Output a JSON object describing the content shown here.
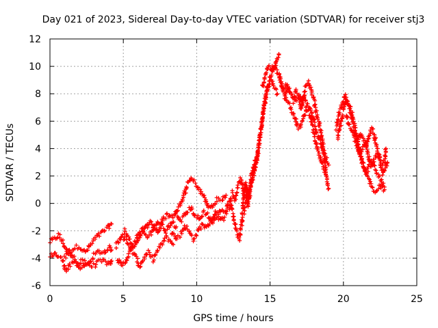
{
  "chart_data": {
    "type": "scatter",
    "title": "Day 021 of 2023, Sidereal Day-to-day VTEC variation (SDTVAR) for receiver stj3",
    "xlabel": "GPS time / hours",
    "ylabel": "SDTVAR / TECUs",
    "xlim": [
      0,
      25
    ],
    "ylim": [
      -6,
      12
    ],
    "xticks": [
      "0",
      "5",
      "10",
      "15",
      "20",
      "25"
    ],
    "yticks": [
      "-6",
      "-4",
      "-2",
      "0",
      "2",
      "4",
      "6",
      "8",
      "10",
      "12"
    ],
    "grid": true,
    "marker": "+",
    "series": [
      {
        "name": "SDTVAR",
        "color": "#ff0000",
        "tracks": [
          [
            [
              0.0,
              -2.8
            ],
            [
              0.3,
              -2.6
            ],
            [
              0.6,
              -2.3
            ],
            [
              0.9,
              -2.9
            ],
            [
              1.2,
              -3.6
            ],
            [
              1.6,
              -3.3
            ],
            [
              2.0,
              -3.1
            ],
            [
              2.4,
              -3.6
            ],
            [
              2.8,
              -3.0
            ],
            [
              3.1,
              -2.5
            ],
            [
              3.4,
              -2.3
            ],
            [
              3.7,
              -2.0
            ],
            [
              4.0,
              -1.7
            ],
            [
              4.2,
              -1.5
            ]
          ],
          [
            [
              0.0,
              -3.9
            ],
            [
              0.3,
              -3.6
            ],
            [
              0.6,
              -3.9
            ],
            [
              0.9,
              -4.2
            ],
            [
              1.1,
              -4.9
            ],
            [
              1.4,
              -4.5
            ],
            [
              1.8,
              -4.3
            ],
            [
              2.1,
              -4.7
            ],
            [
              2.5,
              -4.4
            ],
            [
              2.9,
              -4.6
            ],
            [
              3.3,
              -4.3
            ],
            [
              3.7,
              -4.2
            ],
            [
              4.1,
              -4.5
            ],
            [
              4.2,
              -4.2
            ]
          ],
          [
            [
              1.0,
              -4.0
            ],
            [
              1.3,
              -3.5
            ],
            [
              1.6,
              -3.9
            ],
            [
              1.9,
              -4.6
            ],
            [
              2.2,
              -4.2
            ],
            [
              2.6,
              -4.5
            ],
            [
              3.0,
              -3.8
            ],
            [
              3.3,
              -3.5
            ],
            [
              3.7,
              -3.6
            ],
            [
              4.0,
              -3.2
            ],
            [
              4.2,
              -3.4
            ]
          ],
          [
            [
              4.5,
              -3.1
            ],
            [
              4.8,
              -2.5
            ],
            [
              5.1,
              -2.0
            ],
            [
              5.4,
              -2.6
            ],
            [
              5.7,
              -3.1
            ],
            [
              6.0,
              -2.3
            ],
            [
              6.3,
              -1.9
            ],
            [
              6.6,
              -2.5
            ],
            [
              7.0,
              -2.0
            ],
            [
              7.3,
              -1.3
            ],
            [
              7.6,
              -1.6
            ],
            [
              7.9,
              -2.0
            ],
            [
              8.3,
              -1.3
            ],
            [
              8.6,
              -1.7
            ]
          ],
          [
            [
              4.6,
              -4.0
            ],
            [
              4.9,
              -4.6
            ],
            [
              5.2,
              -4.1
            ],
            [
              5.5,
              -3.4
            ],
            [
              5.8,
              -3.8
            ],
            [
              6.1,
              -4.6
            ],
            [
              6.4,
              -4.0
            ],
            [
              6.7,
              -3.6
            ],
            [
              7.0,
              -4.1
            ],
            [
              7.3,
              -3.5
            ],
            [
              7.6,
              -3.0
            ],
            [
              7.9,
              -2.5
            ],
            [
              8.2,
              -2.7
            ],
            [
              8.4,
              -3.0
            ]
          ],
          [
            [
              5.0,
              -2.5
            ],
            [
              5.3,
              -2.9
            ],
            [
              5.6,
              -3.3
            ],
            [
              5.9,
              -2.8
            ],
            [
              6.2,
              -2.2
            ],
            [
              6.5,
              -1.8
            ],
            [
              6.8,
              -1.3
            ],
            [
              7.1,
              -1.7
            ],
            [
              7.4,
              -2.1
            ],
            [
              7.7,
              -1.2
            ],
            [
              8.0,
              -0.8
            ],
            [
              8.3,
              -1.0
            ],
            [
              8.6,
              -0.6
            ],
            [
              8.9,
              -1.2
            ]
          ],
          [
            [
              8.3,
              -2.0
            ],
            [
              8.6,
              -2.6
            ],
            [
              8.9,
              -2.3
            ],
            [
              9.2,
              -1.6
            ],
            [
              9.5,
              -2.1
            ],
            [
              9.8,
              -2.6
            ],
            [
              10.1,
              -2.0
            ],
            [
              10.4,
              -1.5
            ],
            [
              10.7,
              -1.8
            ],
            [
              11.0,
              -1.2
            ],
            [
              11.3,
              -0.7
            ],
            [
              11.6,
              -1.3
            ],
            [
              11.9,
              -1.0
            ]
          ],
          [
            [
              8.5,
              -0.7
            ],
            [
              8.8,
              -0.2
            ],
            [
              9.1,
              0.4
            ],
            [
              9.3,
              1.2
            ],
            [
              9.6,
              1.8
            ],
            [
              9.9,
              1.5
            ],
            [
              10.2,
              0.9
            ],
            [
              10.5,
              0.5
            ],
            [
              10.8,
              -0.3
            ],
            [
              11.1,
              -0.2
            ],
            [
              11.4,
              0.3
            ],
            [
              11.7,
              0.2
            ],
            [
              12.0,
              0.6
            ]
          ],
          [
            [
              9.0,
              -1.2
            ],
            [
              9.3,
              -0.7
            ],
            [
              9.6,
              -0.3
            ],
            [
              9.9,
              -0.9
            ],
            [
              10.2,
              -1.2
            ],
            [
              10.5,
              -0.6
            ],
            [
              10.8,
              -0.9
            ],
            [
              11.1,
              -1.4
            ],
            [
              11.4,
              -0.8
            ],
            [
              11.7,
              -0.4
            ],
            [
              12.0,
              -0.7
            ],
            [
              12.3,
              -0.2
            ]
          ],
          [
            [
              12.0,
              -0.5
            ],
            [
              12.3,
              0.4
            ],
            [
              12.5,
              -1.0
            ],
            [
              12.7,
              -2.0
            ],
            [
              12.9,
              -2.6
            ],
            [
              13.1,
              -1.3
            ],
            [
              13.2,
              0.5
            ],
            [
              13.3,
              1.5
            ],
            [
              13.4,
              0.4
            ],
            [
              13.5,
              -0.2
            ],
            [
              13.6,
              0.8
            ]
          ],
          [
            [
              12.4,
              0.9
            ],
            [
              12.6,
              0.3
            ],
            [
              12.8,
              1.3
            ],
            [
              13.0,
              1.8
            ],
            [
              13.2,
              0.6
            ],
            [
              13.4,
              1.2
            ],
            [
              13.6,
              0.5
            ],
            [
              13.7,
              1.9
            ],
            [
              13.9,
              2.8
            ],
            [
              14.1,
              3.4
            ]
          ],
          [
            [
              13.2,
              -0.6
            ],
            [
              13.5,
              0.7
            ],
            [
              13.8,
              1.8
            ],
            [
              14.0,
              2.9
            ],
            [
              14.2,
              3.9
            ],
            [
              14.4,
              5.5
            ],
            [
              14.6,
              7.1
            ],
            [
              14.8,
              8.4
            ],
            [
              15.0,
              9.1
            ],
            [
              15.2,
              9.6
            ],
            [
              15.4,
              10.3
            ],
            [
              15.6,
              10.9
            ]
          ],
          [
            [
              13.6,
              1.0
            ],
            [
              13.9,
              2.2
            ],
            [
              14.1,
              3.2
            ],
            [
              14.3,
              4.8
            ],
            [
              14.5,
              6.4
            ],
            [
              14.7,
              7.8
            ],
            [
              14.9,
              8.6
            ],
            [
              15.1,
              8.9
            ],
            [
              15.3,
              8.4
            ],
            [
              15.5,
              8.0
            ]
          ],
          [
            [
              14.5,
              8.5
            ],
            [
              14.7,
              9.5
            ],
            [
              14.9,
              10.0
            ],
            [
              15.1,
              9.8
            ],
            [
              15.3,
              10.0
            ],
            [
              15.5,
              9.6
            ],
            [
              15.7,
              9.2
            ],
            [
              15.9,
              8.3
            ],
            [
              16.1,
              8.6
            ],
            [
              16.3,
              8.1
            ]
          ],
          [
            [
              15.6,
              9.2
            ],
            [
              15.8,
              8.5
            ],
            [
              16.0,
              7.9
            ],
            [
              16.2,
              8.6
            ],
            [
              16.4,
              8.2
            ],
            [
              16.6,
              7.6
            ],
            [
              16.8,
              8.2
            ],
            [
              17.0,
              7.8
            ],
            [
              17.2,
              7.1
            ],
            [
              17.4,
              8.4
            ],
            [
              17.6,
              8.8
            ],
            [
              17.8,
              8.2
            ],
            [
              18.0,
              7.5
            ],
            [
              18.2,
              6.4
            ],
            [
              18.4,
              5.6
            ],
            [
              18.6,
              4.3
            ],
            [
              18.7,
              3.2
            ],
            [
              18.9,
              1.5
            ],
            [
              19.0,
              1.1
            ]
          ],
          [
            [
              16.0,
              7.8
            ],
            [
              16.3,
              7.2
            ],
            [
              16.6,
              6.6
            ],
            [
              16.8,
              5.8
            ],
            [
              17.0,
              5.5
            ],
            [
              17.3,
              6.3
            ],
            [
              17.5,
              7.0
            ],
            [
              17.8,
              6.2
            ],
            [
              18.0,
              5.0
            ],
            [
              18.2,
              4.0
            ],
            [
              18.4,
              3.4
            ],
            [
              18.6,
              2.7
            ],
            [
              18.8,
              2.1
            ]
          ],
          [
            [
              16.6,
              7.3
            ],
            [
              16.9,
              7.6
            ],
            [
              17.1,
              7.0
            ],
            [
              17.3,
              7.8
            ],
            [
              17.5,
              7.3
            ],
            [
              17.8,
              6.8
            ],
            [
              18.0,
              6.0
            ],
            [
              18.2,
              5.1
            ],
            [
              18.4,
              4.5
            ],
            [
              18.6,
              3.9
            ],
            [
              18.8,
              3.3
            ],
            [
              19.0,
              2.8
            ]
          ],
          [
            [
              19.5,
              5.5
            ],
            [
              19.7,
              6.5
            ],
            [
              19.9,
              7.2
            ],
            [
              20.1,
              7.8
            ],
            [
              20.3,
              7.3
            ],
            [
              20.5,
              6.8
            ],
            [
              20.7,
              6.0
            ],
            [
              20.9,
              4.9
            ],
            [
              21.1,
              3.9
            ],
            [
              21.3,
              2.9
            ],
            [
              21.5,
              2.2
            ],
            [
              21.7,
              2.6
            ],
            [
              21.9,
              3.1
            ],
            [
              22.1,
              2.6
            ],
            [
              22.3,
              2.2
            ],
            [
              22.6,
              1.6
            ],
            [
              22.8,
              1.2
            ]
          ],
          [
            [
              19.6,
              4.6
            ],
            [
              19.8,
              5.8
            ],
            [
              20.0,
              6.8
            ],
            [
              20.2,
              7.6
            ],
            [
              20.4,
              7.1
            ],
            [
              20.6,
              6.1
            ],
            [
              20.8,
              5.1
            ],
            [
              21.0,
              4.1
            ],
            [
              21.2,
              3.3
            ],
            [
              21.4,
              2.6
            ],
            [
              21.6,
              2.1
            ],
            [
              21.8,
              1.6
            ],
            [
              22.0,
              1.1
            ],
            [
              22.2,
              0.9
            ],
            [
              22.5,
              1.3
            ],
            [
              22.8,
              1.0
            ]
          ],
          [
            [
              20.2,
              6.4
            ],
            [
              20.4,
              5.6
            ],
            [
              20.6,
              5.2
            ],
            [
              20.8,
              4.6
            ],
            [
              21.0,
              4.8
            ],
            [
              21.2,
              5.0
            ],
            [
              21.4,
              4.6
            ],
            [
              21.6,
              4.0
            ],
            [
              21.8,
              5.1
            ],
            [
              22.0,
              5.5
            ],
            [
              22.2,
              4.5
            ],
            [
              22.4,
              3.6
            ],
            [
              22.6,
              2.9
            ],
            [
              22.8,
              3.1
            ],
            [
              22.9,
              4.0
            ]
          ],
          [
            [
              20.9,
              4.2
            ],
            [
              21.1,
              3.6
            ],
            [
              21.3,
              4.0
            ],
            [
              21.5,
              4.4
            ],
            [
              21.7,
              3.5
            ],
            [
              21.9,
              2.7
            ],
            [
              22.1,
              3.2
            ],
            [
              22.3,
              3.6
            ],
            [
              22.5,
              2.9
            ],
            [
              22.7,
              2.2
            ],
            [
              22.9,
              2.8
            ],
            [
              23.0,
              3.0
            ]
          ]
        ]
      }
    ]
  }
}
